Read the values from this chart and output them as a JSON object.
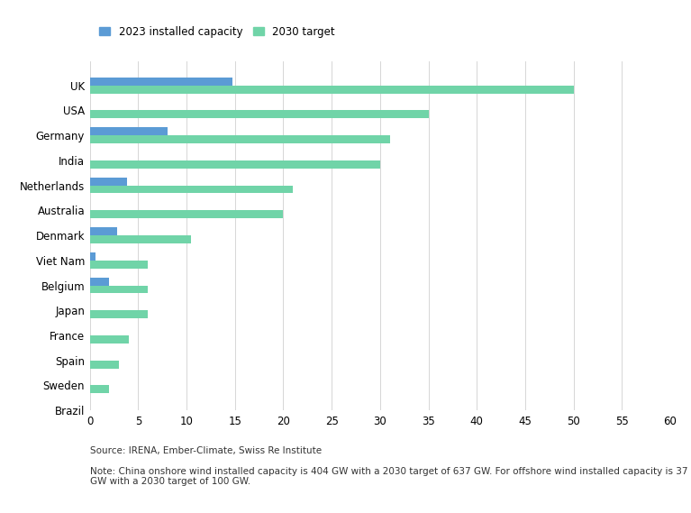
{
  "countries": [
    "UK",
    "USA",
    "Germany",
    "India",
    "Netherlands",
    "Australia",
    "Denmark",
    "Viet Nam",
    "Belgium",
    "Japan",
    "France",
    "Spain",
    "Sweden",
    "Brazil"
  ],
  "installed_2023": [
    14.7,
    0,
    8.0,
    0,
    3.8,
    0,
    2.8,
    0.6,
    2.0,
    0,
    0,
    0,
    0,
    0
  ],
  "target_2030": [
    50,
    35,
    31,
    30,
    21,
    20,
    10.5,
    6,
    6,
    6,
    4,
    3,
    2,
    0
  ],
  "color_installed": "#5b9bd5",
  "color_target": "#70d4a8",
  "xlim": [
    0,
    60
  ],
  "xticks": [
    0,
    5,
    10,
    15,
    20,
    25,
    30,
    35,
    40,
    45,
    50,
    55,
    60
  ],
  "legend_installed": "2023 installed capacity",
  "legend_target": "2030 target",
  "source_text": "Source: IRENA, Ember-Climate, Swiss Re Institute",
  "note_text": "Note: China onshore wind installed capacity is 404 GW with a 2030 target of 637 GW. For offshore wind installed capacity is 37\nGW with a 2030 target of 100 GW.",
  "background_color": "#ffffff",
  "bar_height": 0.32
}
